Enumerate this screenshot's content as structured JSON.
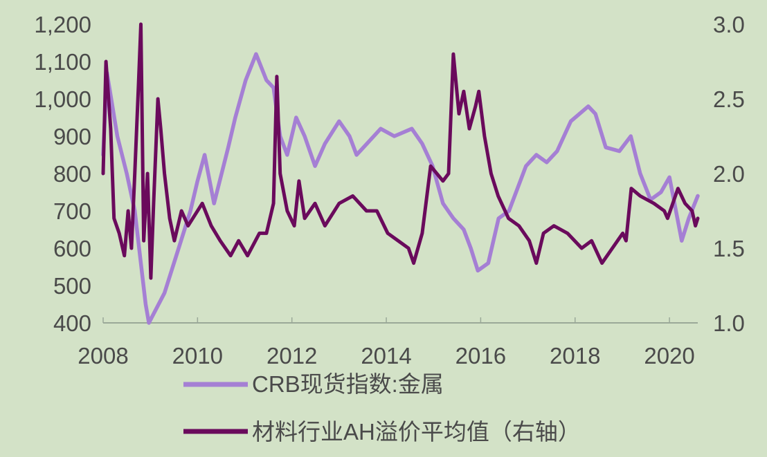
{
  "chart_data": {
    "type": "line",
    "title": "",
    "xlabel": "",
    "ylabel": "",
    "xlim": [
      2008,
      2020.6
    ],
    "ylim_left": [
      400,
      1200
    ],
    "ylim_right": [
      1.0,
      3.0
    ],
    "x_ticks": [
      "2008",
      "2010",
      "2012",
      "2014",
      "2016",
      "2018",
      "2020"
    ],
    "y_ticks_left": [
      "400",
      "500",
      "600",
      "700",
      "800",
      "900",
      "1,000",
      "1,100",
      "1,200"
    ],
    "y_ticks_right": [
      "1.0",
      "1.5",
      "2.0",
      "2.5",
      "3.0"
    ],
    "grid": false,
    "legend_position": "bottom",
    "background": "#d3e2c7",
    "series": [
      {
        "name": "CRB现货指数:金属",
        "axis": "left",
        "color": "#a57fd4",
        "points": [
          [
            2008.0,
            850
          ],
          [
            2008.08,
            1070
          ],
          [
            2008.3,
            900
          ],
          [
            2008.5,
            800
          ],
          [
            2008.67,
            700
          ],
          [
            2008.9,
            450
          ],
          [
            2008.97,
            400
          ],
          [
            2009.3,
            480
          ],
          [
            2009.6,
            600
          ],
          [
            2009.85,
            700
          ],
          [
            2010.0,
            780
          ],
          [
            2010.15,
            850
          ],
          [
            2010.35,
            720
          ],
          [
            2010.65,
            870
          ],
          [
            2010.8,
            950
          ],
          [
            2011.02,
            1050
          ],
          [
            2011.24,
            1120
          ],
          [
            2011.46,
            1050
          ],
          [
            2011.61,
            1030
          ],
          [
            2011.75,
            900
          ],
          [
            2011.9,
            850
          ],
          [
            2012.09,
            950
          ],
          [
            2012.27,
            900
          ],
          [
            2012.49,
            820
          ],
          [
            2012.7,
            880
          ],
          [
            2013.0,
            940
          ],
          [
            2013.22,
            900
          ],
          [
            2013.37,
            850
          ],
          [
            2013.59,
            880
          ],
          [
            2013.88,
            920
          ],
          [
            2014.17,
            900
          ],
          [
            2014.54,
            920
          ],
          [
            2014.76,
            880
          ],
          [
            2014.98,
            820
          ],
          [
            2015.2,
            720
          ],
          [
            2015.42,
            680
          ],
          [
            2015.64,
            650
          ],
          [
            2015.79,
            600
          ],
          [
            2015.94,
            540
          ],
          [
            2016.16,
            560
          ],
          [
            2016.38,
            680
          ],
          [
            2016.6,
            700
          ],
          [
            2016.96,
            820
          ],
          [
            2017.18,
            850
          ],
          [
            2017.4,
            830
          ],
          [
            2017.62,
            860
          ],
          [
            2017.91,
            940
          ],
          [
            2018.28,
            980
          ],
          [
            2018.43,
            960
          ],
          [
            2018.65,
            870
          ],
          [
            2018.94,
            860
          ],
          [
            2019.18,
            900
          ],
          [
            2019.38,
            800
          ],
          [
            2019.6,
            730
          ],
          [
            2019.82,
            750
          ],
          [
            2020.0,
            790
          ],
          [
            2020.26,
            620
          ],
          [
            2020.41,
            680
          ],
          [
            2020.6,
            740
          ]
        ]
      },
      {
        "name": "材料行业AH溢价平均值（右轴）",
        "axis": "right",
        "color": "#6a0a5c",
        "points": [
          [
            2008.0,
            2.0
          ],
          [
            2008.06,
            2.75
          ],
          [
            2008.16,
            2.3
          ],
          [
            2008.23,
            1.7
          ],
          [
            2008.34,
            1.6
          ],
          [
            2008.45,
            1.45
          ],
          [
            2008.53,
            1.75
          ],
          [
            2008.6,
            1.5
          ],
          [
            2008.67,
            2.0
          ],
          [
            2008.75,
            2.6
          ],
          [
            2008.8,
            3.0
          ],
          [
            2008.86,
            1.55
          ],
          [
            2008.94,
            2.0
          ],
          [
            2009.01,
            1.3
          ],
          [
            2009.07,
            1.8
          ],
          [
            2009.16,
            2.5
          ],
          [
            2009.22,
            2.3
          ],
          [
            2009.3,
            2.0
          ],
          [
            2009.41,
            1.7
          ],
          [
            2009.51,
            1.55
          ],
          [
            2009.66,
            1.75
          ],
          [
            2009.8,
            1.65
          ],
          [
            2010.1,
            1.8
          ],
          [
            2010.29,
            1.65
          ],
          [
            2010.48,
            1.55
          ],
          [
            2010.7,
            1.45
          ],
          [
            2010.87,
            1.55
          ],
          [
            2011.06,
            1.45
          ],
          [
            2011.31,
            1.6
          ],
          [
            2011.46,
            1.6
          ],
          [
            2011.61,
            1.8
          ],
          [
            2011.68,
            2.65
          ],
          [
            2011.75,
            2.0
          ],
          [
            2011.9,
            1.75
          ],
          [
            2012.05,
            1.65
          ],
          [
            2012.15,
            1.95
          ],
          [
            2012.27,
            1.7
          ],
          [
            2012.49,
            1.8
          ],
          [
            2012.7,
            1.65
          ],
          [
            2013.0,
            1.8
          ],
          [
            2013.29,
            1.85
          ],
          [
            2013.58,
            1.75
          ],
          [
            2013.8,
            1.75
          ],
          [
            2014.03,
            1.6
          ],
          [
            2014.25,
            1.55
          ],
          [
            2014.47,
            1.5
          ],
          [
            2014.58,
            1.4
          ],
          [
            2014.76,
            1.6
          ],
          [
            2014.94,
            2.05
          ],
          [
            2015.2,
            1.95
          ],
          [
            2015.32,
            2.0
          ],
          [
            2015.42,
            2.8
          ],
          [
            2015.54,
            2.4
          ],
          [
            2015.64,
            2.55
          ],
          [
            2015.76,
            2.3
          ],
          [
            2015.89,
            2.45
          ],
          [
            2015.96,
            2.55
          ],
          [
            2016.08,
            2.25
          ],
          [
            2016.22,
            2.0
          ],
          [
            2016.37,
            1.85
          ],
          [
            2016.59,
            1.7
          ],
          [
            2016.81,
            1.65
          ],
          [
            2017.03,
            1.55
          ],
          [
            2017.18,
            1.4
          ],
          [
            2017.33,
            1.6
          ],
          [
            2017.55,
            1.65
          ],
          [
            2017.84,
            1.6
          ],
          [
            2018.14,
            1.5
          ],
          [
            2018.35,
            1.55
          ],
          [
            2018.57,
            1.4
          ],
          [
            2018.79,
            1.5
          ],
          [
            2019.01,
            1.6
          ],
          [
            2019.08,
            1.55
          ],
          [
            2019.19,
            1.9
          ],
          [
            2019.38,
            1.85
          ],
          [
            2019.67,
            1.8
          ],
          [
            2019.89,
            1.75
          ],
          [
            2019.96,
            1.7
          ],
          [
            2020.18,
            1.9
          ],
          [
            2020.33,
            1.8
          ],
          [
            2020.48,
            1.75
          ],
          [
            2020.55,
            1.65
          ],
          [
            2020.6,
            1.7
          ]
        ]
      }
    ]
  }
}
